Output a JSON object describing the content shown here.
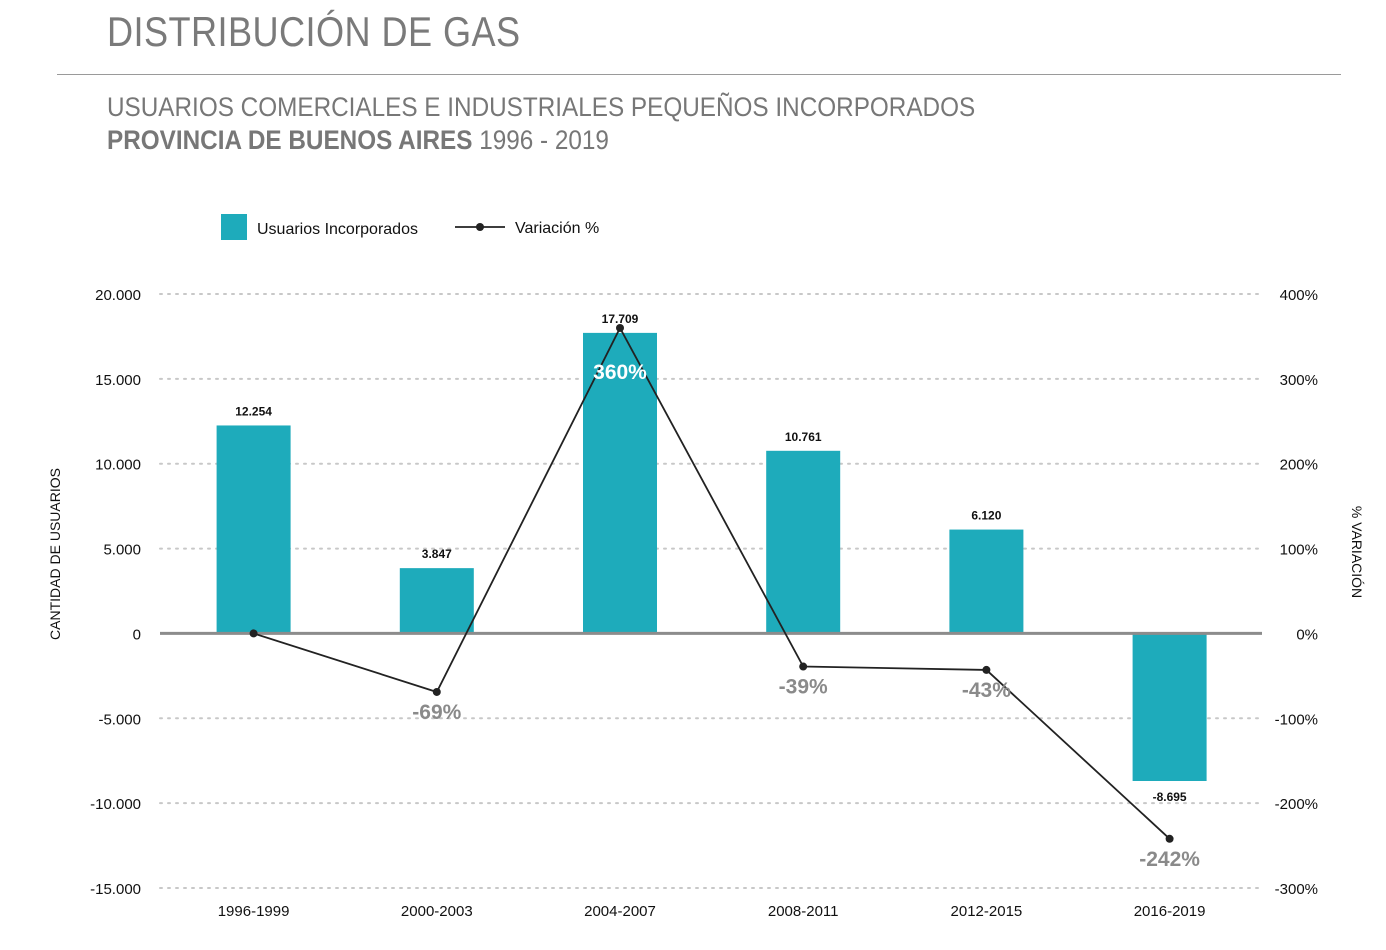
{
  "header": {
    "title": "DISTRIBUCIÓN DE GAS",
    "subtitle_line1": "USUARIOS COMERCIALES E INDUSTRIALES PEQUEÑOS INCORPORADOS",
    "subtitle_line2_bold": "PROVINCIA DE BUENOS AIRES",
    "subtitle_line2_range": "1996 - 2019"
  },
  "chart_data": {
    "type": "bar",
    "categories": [
      "1996-1999",
      "2000-2003",
      "2004-2007",
      "2008-2011",
      "2012-2015",
      "2016-2019"
    ],
    "series": [
      {
        "name": "Usuarios Incorporados",
        "type": "bar",
        "axis": "left",
        "values": [
          12254,
          3847,
          17709,
          10761,
          6120,
          -8695
        ],
        "labels": [
          "12.254",
          "3.847",
          "17.709",
          "10.761",
          "6.120",
          "-8.695"
        ]
      },
      {
        "name": "Variación %",
        "type": "line",
        "axis": "right",
        "values": [
          0,
          -69,
          360,
          -39,
          -43,
          -242
        ],
        "labels": [
          "",
          "-69%",
          "360%",
          "-39%",
          "-43%",
          "-242%"
        ]
      }
    ],
    "ylabel": "CANTIDAD DE USUARIOS",
    "y2label": "% VARIACIÓN",
    "ylim": [
      -15000,
      20000
    ],
    "y2lim": [
      -300,
      400
    ],
    "yticks": [
      20000,
      15000,
      10000,
      5000,
      0,
      -5000,
      -10000,
      -15000
    ],
    "yticklabels": [
      "20.000",
      "15.000",
      "10.000",
      "5.000",
      "0",
      "-5.000",
      "-10.000",
      "-15.000"
    ],
    "y2ticks": [
      400,
      300,
      200,
      100,
      0,
      -100,
      -200,
      -300
    ],
    "y2ticklabels": [
      "400%",
      "300%",
      "200%",
      "100%",
      "0%",
      "-100%",
      "-200%",
      "-300%"
    ],
    "grid": true,
    "legend_position": "top-left",
    "colors": {
      "bar": "#1eabbb",
      "line": "#222222",
      "zero_line": "#8c8c8c",
      "grid": "#c8c8c8",
      "pct_label": "#8a8a8a"
    }
  }
}
